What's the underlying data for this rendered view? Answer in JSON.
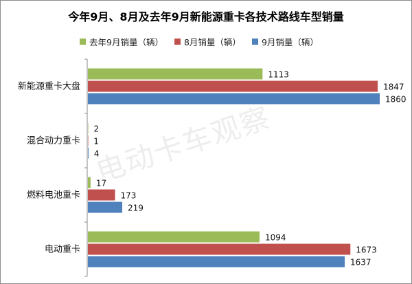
{
  "chart_data": {
    "type": "bar",
    "orientation": "horizontal",
    "title": "今年9月、8月及去年9月新能源重卡各技术路线车型销量",
    "categories": [
      "新能源重卡大盘",
      "混合动力重卡",
      "燃料电池重卡",
      "电动重卡"
    ],
    "series": [
      {
        "name": "去年9月销量（辆）",
        "color": "#9bbb59",
        "values": [
          1113,
          2,
          17,
          1094
        ]
      },
      {
        "name": "8月销量（辆）",
        "color": "#c0504d",
        "values": [
          1847,
          1,
          173,
          1673
        ]
      },
      {
        "name": "9月销量（辆）",
        "color": "#4f81bd",
        "values": [
          1860,
          4,
          219,
          1637
        ]
      }
    ],
    "xlim": [
      0,
      1860
    ],
    "legend_position": "top",
    "grid": false
  },
  "watermark": "电动卡车观察"
}
